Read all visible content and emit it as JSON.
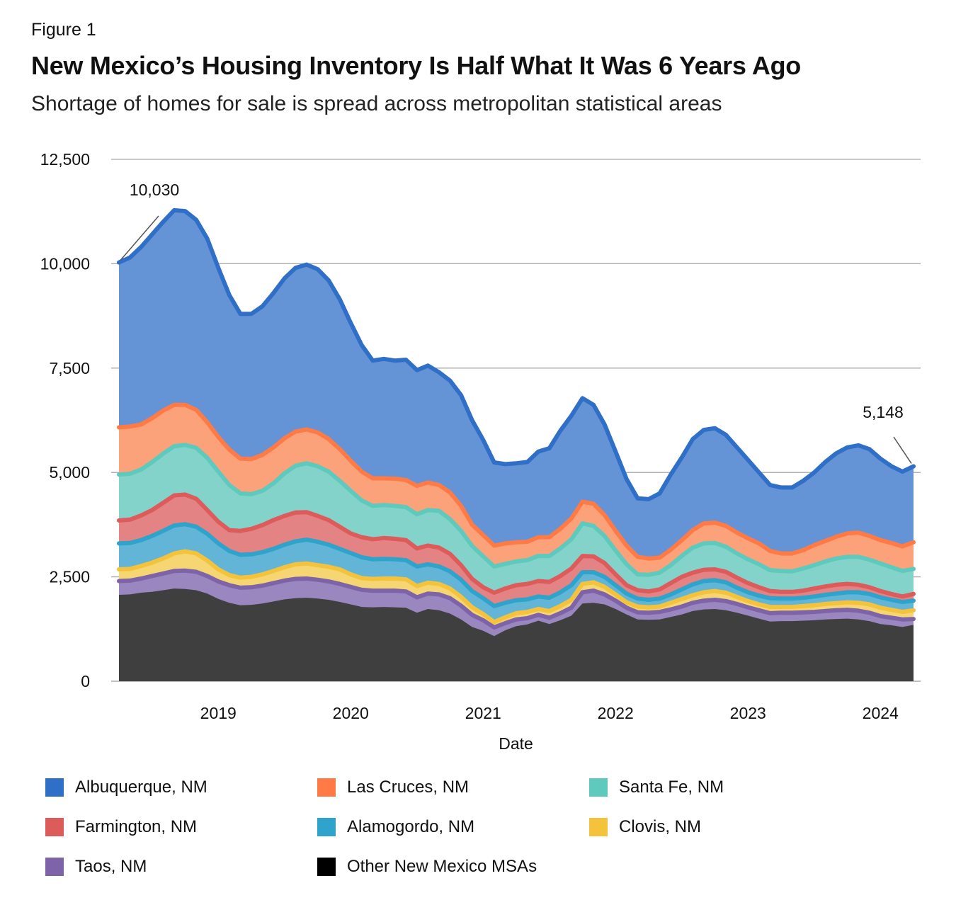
{
  "figure_label": "Figure 1",
  "title": "New Mexico’s Housing Inventory Is Half What It Was 6 Years Ago",
  "subtitle": "Shortage of homes for sale is spread across metropolitan statistical areas",
  "chart_data": {
    "type": "area",
    "stacked": true,
    "xlabel": "Date",
    "ylabel": "",
    "ylim": [
      0,
      12500
    ],
    "yticks": [
      0,
      2500,
      5000,
      7500,
      10000,
      12500
    ],
    "ytick_labels": [
      "0",
      "2,500",
      "5,000",
      "7,500",
      "10,000",
      "12,500"
    ],
    "x_start": 2018.25,
    "x_step_months": 1,
    "xticks": [
      2019,
      2020,
      2021,
      2022,
      2023,
      2024
    ],
    "xtick_labels": [
      "2019",
      "2020",
      "2021",
      "2022",
      "2023",
      "2024"
    ],
    "grid": true,
    "annotations": [
      {
        "label": "10,030",
        "x_index": 0,
        "value": 10030
      },
      {
        "label": "5,148",
        "x_index": 72,
        "value": 5148
      }
    ],
    "stack_order": [
      "Other New Mexico MSAs",
      "Taos, NM",
      "Clovis, NM",
      "Alamogordo, NM",
      "Farmington, NM",
      "Santa Fe, NM",
      "Las Cruces, NM",
      "Albuquerque, NM"
    ],
    "series": [
      {
        "name": "Albuquerque, NM",
        "color": "#2f6fc7",
        "fill": "#6494d6",
        "cumulative": [
          10030,
          10150,
          10400,
          10700,
          11000,
          11280,
          11260,
          11050,
          10600,
          9900,
          9250,
          8800,
          8800,
          8980,
          9300,
          9650,
          9900,
          9980,
          9870,
          9600,
          9150,
          8580,
          8050,
          7680,
          7720,
          7680,
          7700,
          7450,
          7560,
          7400,
          7200,
          6850,
          6250,
          5780,
          5240,
          5200,
          5220,
          5250,
          5500,
          5580,
          6000,
          6360,
          6780,
          6620,
          6150,
          5500,
          4840,
          4380,
          4360,
          4500,
          4950,
          5360,
          5800,
          6020,
          6060,
          5900,
          5600,
          5300,
          5000,
          4700,
          4640,
          4640,
          4800,
          5000,
          5250,
          5460,
          5600,
          5650,
          5560,
          5330,
          5150,
          5020,
          5148
        ]
      },
      {
        "name": "Las Cruces, NM",
        "color": "#ff7a45",
        "fill": "#fba27a",
        "cumulative": [
          6080,
          6100,
          6150,
          6300,
          6480,
          6620,
          6620,
          6500,
          6200,
          5850,
          5550,
          5330,
          5320,
          5420,
          5600,
          5820,
          5980,
          6030,
          5960,
          5800,
          5560,
          5280,
          5020,
          4860,
          4860,
          4850,
          4820,
          4680,
          4760,
          4700,
          4520,
          4200,
          3750,
          3500,
          3250,
          3300,
          3330,
          3340,
          3450,
          3450,
          3650,
          3900,
          4300,
          4250,
          3980,
          3600,
          3250,
          2980,
          2940,
          2960,
          3150,
          3380,
          3620,
          3780,
          3800,
          3720,
          3560,
          3420,
          3300,
          3120,
          3060,
          3060,
          3140,
          3260,
          3360,
          3460,
          3540,
          3560,
          3480,
          3380,
          3310,
          3230,
          3330
        ]
      },
      {
        "name": "Santa Fe, NM",
        "color": "#5ec9bd",
        "fill": "#84d3cb",
        "cumulative": [
          4950,
          4970,
          5070,
          5250,
          5450,
          5630,
          5660,
          5590,
          5350,
          5020,
          4700,
          4500,
          4480,
          4560,
          4740,
          4980,
          5160,
          5220,
          5150,
          5020,
          4800,
          4560,
          4330,
          4200,
          4220,
          4200,
          4170,
          4000,
          4100,
          4080,
          3880,
          3600,
          3240,
          2990,
          2750,
          2810,
          2870,
          2900,
          3000,
          3000,
          3180,
          3400,
          3780,
          3720,
          3480,
          3130,
          2800,
          2560,
          2550,
          2600,
          2780,
          3000,
          3200,
          3300,
          3310,
          3220,
          3060,
          2920,
          2800,
          2660,
          2640,
          2630,
          2700,
          2780,
          2870,
          2940,
          2980,
          2980,
          2910,
          2820,
          2730,
          2640,
          2690
        ]
      },
      {
        "name": "Farmington, NM",
        "color": "#dd5b5b",
        "fill": "#e38383",
        "cumulative": [
          3850,
          3870,
          3970,
          4100,
          4270,
          4450,
          4470,
          4370,
          4100,
          3820,
          3620,
          3600,
          3650,
          3740,
          3860,
          3960,
          4040,
          4050,
          3960,
          3860,
          3700,
          3540,
          3450,
          3400,
          3430,
          3410,
          3380,
          3180,
          3250,
          3200,
          3050,
          2780,
          2450,
          2250,
          2120,
          2220,
          2300,
          2330,
          2400,
          2380,
          2520,
          2700,
          3000,
          2990,
          2830,
          2560,
          2300,
          2180,
          2150,
          2200,
          2350,
          2500,
          2600,
          2670,
          2680,
          2620,
          2480,
          2350,
          2250,
          2160,
          2140,
          2140,
          2170,
          2220,
          2270,
          2310,
          2330,
          2310,
          2250,
          2160,
          2090,
          2030,
          2090
        ]
      },
      {
        "name": "Alamogordo, NM",
        "color": "#2ea3cc",
        "fill": "#62b5d6",
        "cumulative": [
          3300,
          3310,
          3380,
          3480,
          3600,
          3730,
          3760,
          3700,
          3530,
          3300,
          3120,
          3030,
          3040,
          3090,
          3170,
          3270,
          3350,
          3390,
          3340,
          3270,
          3170,
          3070,
          2970,
          2920,
          2930,
          2920,
          2900,
          2750,
          2800,
          2750,
          2630,
          2430,
          2160,
          1990,
          1800,
          1880,
          1940,
          1960,
          2030,
          2000,
          2130,
          2300,
          2610,
          2610,
          2500,
          2300,
          2100,
          1980,
          1950,
          1980,
          2080,
          2200,
          2320,
          2400,
          2420,
          2370,
          2240,
          2130,
          2050,
          1990,
          1980,
          1980,
          2000,
          2030,
          2070,
          2100,
          2130,
          2130,
          2090,
          2010,
          1950,
          1900,
          1930
        ]
      },
      {
        "name": "Clovis, NM",
        "color": "#f5c33b",
        "fill": "#f5d673",
        "cumulative": [
          2680,
          2690,
          2760,
          2840,
          2940,
          3060,
          3110,
          3060,
          2890,
          2680,
          2540,
          2480,
          2500,
          2560,
          2640,
          2730,
          2800,
          2820,
          2780,
          2740,
          2680,
          2560,
          2470,
          2450,
          2460,
          2460,
          2440,
          2280,
          2360,
          2330,
          2220,
          2020,
          1770,
          1610,
          1420,
          1530,
          1630,
          1660,
          1730,
          1680,
          1800,
          1950,
          2330,
          2370,
          2260,
          2080,
          1890,
          1790,
          1770,
          1790,
          1880,
          1970,
          2060,
          2130,
          2160,
          2120,
          2020,
          1920,
          1840,
          1780,
          1780,
          1780,
          1800,
          1820,
          1850,
          1870,
          1890,
          1880,
          1840,
          1760,
          1710,
          1660,
          1700
        ]
      },
      {
        "name": "Taos, NM",
        "color": "#7e63a8",
        "fill": "#9a87bf",
        "cumulative": [
          2400,
          2410,
          2460,
          2520,
          2580,
          2640,
          2650,
          2620,
          2520,
          2390,
          2300,
          2240,
          2250,
          2290,
          2350,
          2410,
          2450,
          2460,
          2430,
          2390,
          2330,
          2260,
          2190,
          2170,
          2170,
          2170,
          2150,
          2010,
          2100,
          2080,
          1990,
          1810,
          1590,
          1460,
          1290,
          1390,
          1480,
          1510,
          1590,
          1520,
          1630,
          1760,
          2130,
          2170,
          2080,
          1930,
          1760,
          1650,
          1640,
          1660,
          1720,
          1790,
          1880,
          1930,
          1950,
          1920,
          1850,
          1770,
          1700,
          1630,
          1640,
          1640,
          1650,
          1660,
          1680,
          1700,
          1710,
          1690,
          1640,
          1560,
          1520,
          1480,
          1490
        ]
      },
      {
        "name": "Other New Mexico MSAs",
        "color": "#3c3c3c",
        "fill": "#3f3f3f",
        "cumulative": [
          2070,
          2080,
          2120,
          2140,
          2180,
          2220,
          2210,
          2180,
          2100,
          1970,
          1880,
          1820,
          1830,
          1860,
          1910,
          1960,
          1990,
          2000,
          1980,
          1950,
          1900,
          1840,
          1780,
          1770,
          1780,
          1770,
          1760,
          1640,
          1730,
          1700,
          1620,
          1480,
          1300,
          1210,
          1080,
          1220,
          1320,
          1360,
          1450,
          1370,
          1460,
          1570,
          1860,
          1880,
          1840,
          1730,
          1600,
          1480,
          1470,
          1480,
          1540,
          1600,
          1680,
          1720,
          1730,
          1700,
          1640,
          1570,
          1500,
          1430,
          1440,
          1440,
          1450,
          1460,
          1480,
          1490,
          1500,
          1480,
          1440,
          1370,
          1340,
          1300,
          1350
        ]
      }
    ]
  },
  "legend": {
    "items": [
      {
        "label": "Albuquerque, NM",
        "color": "#2f6fc7"
      },
      {
        "label": "Las Cruces, NM",
        "color": "#ff7a45"
      },
      {
        "label": "Santa Fe, NM",
        "color": "#5ec9bd"
      },
      {
        "label": "Farmington, NM",
        "color": "#dd5b5b"
      },
      {
        "label": "Alamogordo, NM",
        "color": "#2ea3cc"
      },
      {
        "label": "Clovis, NM",
        "color": "#f5c33b"
      },
      {
        "label": "Taos, NM",
        "color": "#7e63a8"
      },
      {
        "label": "Other New Mexico MSAs",
        "color": "#000000"
      }
    ]
  }
}
